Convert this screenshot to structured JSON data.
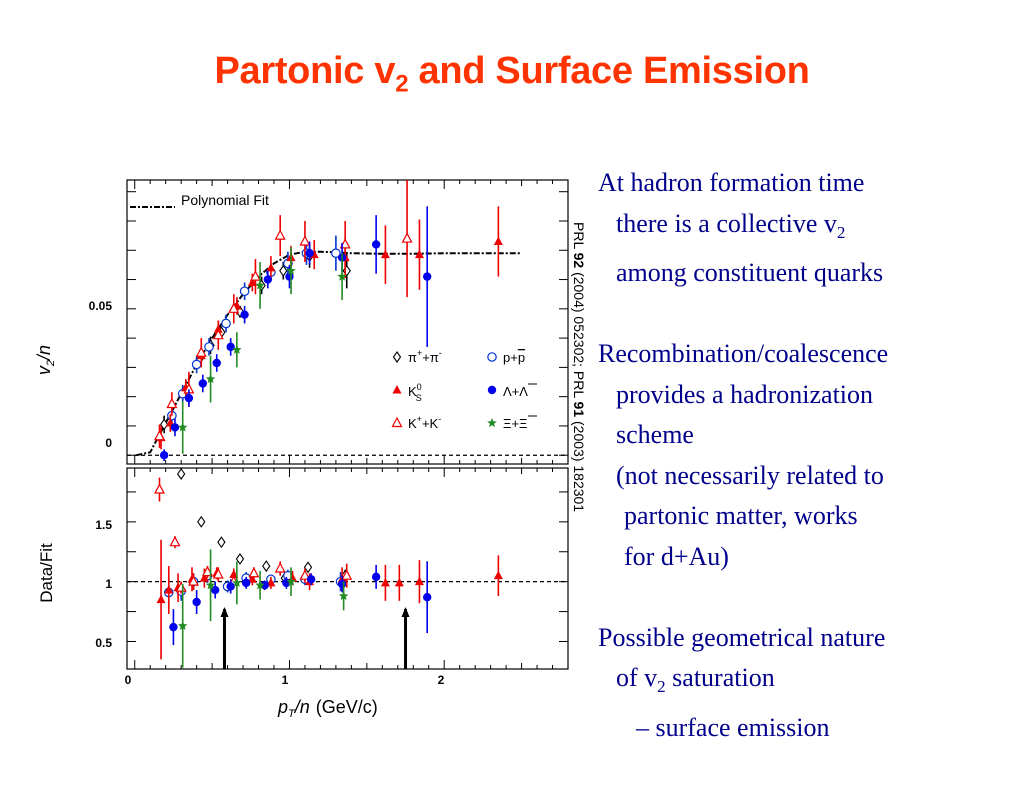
{
  "slide": {
    "title_main": "Partonic v",
    "title_sub": "2",
    "title_rest": " and Surface Emission"
  },
  "citation": {
    "t1": "PRL ",
    "b1": "92",
    "t2": " (2004) 052302; PRL ",
    "b2": "91",
    "t3": " (2003) 182301"
  },
  "bullets": [
    {
      "lines": [
        "At hadron formation time",
        "there is a collective v",
        "among constituent quarks"
      ],
      "sub": "2"
    },
    {
      "lines": [
        "Recombination/coalescence",
        "provides a hadronization",
        "scheme",
        "(not necessarily related to",
        "partonic matter, works",
        "for d+Au)"
      ]
    },
    {
      "lines": [
        "Possible geometrical nature",
        "of v",
        " saturation",
        "– surface emission"
      ],
      "sub": "2"
    }
  ],
  "chart_data": {
    "type": "scatter",
    "panels": [
      {
        "id": "top",
        "ylabel": "v2/n",
        "ylim": [
          -0.003,
          0.094
        ],
        "yticks": [
          0,
          0.05
        ],
        "ytick_labels": [
          "0",
          "0.05"
        ],
        "reference_line": 0,
        "fit_label": "Polynomial Fit",
        "fit_curve": [
          [
            0.01,
            0
          ],
          [
            0.1,
            0.001
          ],
          [
            0.15,
            0.006
          ],
          [
            0.2,
            0.011
          ],
          [
            0.3,
            0.021
          ],
          [
            0.4,
            0.031
          ],
          [
            0.5,
            0.04
          ],
          [
            0.6,
            0.048
          ],
          [
            0.7,
            0.055
          ],
          [
            0.8,
            0.061
          ],
          [
            0.9,
            0.0655
          ],
          [
            1.0,
            0.0685
          ],
          [
            1.1,
            0.0695
          ],
          [
            1.2,
            0.0695
          ],
          [
            1.4,
            0.069
          ],
          [
            1.6,
            0.0688
          ],
          [
            1.8,
            0.0688
          ],
          [
            2.0,
            0.069
          ],
          [
            2.2,
            0.069
          ],
          [
            2.4,
            0.069
          ],
          [
            2.5,
            0.069
          ]
        ],
        "series": [
          {
            "name": "π⁺+π⁻",
            "symbol": "diamond-open",
            "color": "#000000",
            "points": [
              [
                0.19,
                0.0105,
                0.003
              ],
              [
                0.31,
                0.021,
                0.002
              ],
              [
                0.42,
                0.033,
                0.003
              ],
              [
                0.49,
                0.0375,
                0.003
              ],
              [
                0.56,
                0.042,
                0.002
              ],
              [
                0.68,
                0.049,
                0.002
              ],
              [
                0.82,
                0.058,
                0.003
              ],
              [
                0.96,
                0.063,
                0.003
              ],
              [
                1.13,
                0.068,
                0.004
              ],
              [
                1.37,
                0.063,
                0.006
              ]
            ]
          },
          {
            "name": "p+p̄",
            "symbol": "circle-open",
            "color": "#0033cc",
            "points": [
              [
                0.24,
                0.0135,
                0.003
              ],
              [
                0.31,
                0.021,
                0.003
              ],
              [
                0.4,
                0.031,
                0.003
              ],
              [
                0.48,
                0.037,
                0.003
              ],
              [
                0.59,
                0.045,
                0.003
              ],
              [
                0.71,
                0.056,
                0.003
              ],
              [
                0.88,
                0.0625,
                0.003
              ],
              [
                0.99,
                0.0655,
                0.004
              ],
              [
                1.11,
                0.069,
                0.004
              ],
              [
                1.3,
                0.069,
                0.006
              ]
            ]
          },
          {
            "name": "K⁰S",
            "symbol": "triangle-filled",
            "color": "#ee0000",
            "points": [
              [
                0.17,
                0.006,
                0.004
              ],
              [
                0.23,
                0.011,
                0.003
              ],
              [
                0.33,
                0.023,
                0.003
              ],
              [
                0.43,
                0.034,
                0.003
              ],
              [
                0.54,
                0.043,
                0.003
              ],
              [
                0.66,
                0.051,
                0.003
              ],
              [
                0.76,
                0.059,
                0.003
              ],
              [
                0.88,
                0.064,
                0.004
              ],
              [
                1.01,
                0.0675,
                0.004
              ],
              [
                1.16,
                0.0685,
                0.005
              ],
              [
                1.36,
                0.0675,
                0.007
              ],
              [
                1.62,
                0.0685,
                0.01
              ],
              [
                1.84,
                0.0685,
                0.012
              ],
              [
                2.35,
                0.073,
                0.012
              ]
            ]
          },
          {
            "name": "K⁺+K⁻",
            "symbol": "triangle-open",
            "color": "#ee0000",
            "points": [
              [
                0.16,
                0.0065,
                0.004
              ],
              [
                0.24,
                0.0175,
                0.004
              ],
              [
                0.35,
                0.0225,
                0.006
              ],
              [
                0.43,
                0.035,
                0.005
              ],
              [
                0.54,
                0.041,
                0.005
              ],
              [
                0.64,
                0.05,
                0.005
              ],
              [
                0.78,
                0.061,
                0.006
              ],
              [
                0.94,
                0.075,
                0.007
              ],
              [
                1.1,
                0.073,
                0.007
              ],
              [
                1.36,
                0.072,
                0.008
              ],
              [
                1.76,
                0.074,
                0.02
              ]
            ]
          },
          {
            "name": "Λ+Λ̄",
            "symbol": "circle-filled",
            "color": "#0000ee",
            "points": [
              [
                0.19,
                0.0,
                0.002
              ],
              [
                0.26,
                0.0095,
                0.003
              ],
              [
                0.35,
                0.0195,
                0.003
              ],
              [
                0.44,
                0.0245,
                0.003
              ],
              [
                0.53,
                0.0315,
                0.003
              ],
              [
                0.62,
                0.037,
                0.003
              ],
              [
                0.71,
                0.048,
                0.003
              ],
              [
                0.86,
                0.06,
                0.003
              ],
              [
                1.0,
                0.061,
                0.004
              ],
              [
                1.13,
                0.069,
                0.004
              ],
              [
                1.34,
                0.0675,
                0.005
              ],
              [
                1.56,
                0.072,
                0.01
              ],
              [
                1.89,
                0.061,
                0.024
              ]
            ]
          },
          {
            "name": "Ξ+Ξ̄",
            "symbol": "star",
            "color": "#228b22",
            "points": [
              [
                0.31,
                0.0095,
                0.009
              ],
              [
                0.49,
                0.026,
                0.008
              ],
              [
                0.66,
                0.036,
                0.006
              ],
              [
                0.81,
                0.058,
                0.008
              ],
              [
                1.01,
                0.063,
                0.008
              ],
              [
                1.34,
                0.061,
                0.008
              ]
            ]
          }
        ]
      },
      {
        "id": "bottom",
        "ylabel": "Data/Fit",
        "ylim": [
          0.27,
          1.95
        ],
        "yticks": [
          0.5,
          1,
          1.5
        ],
        "ytick_labels": [
          "0.5",
          "1",
          "1.5"
        ],
        "reference_line": 1,
        "arrows_x": [
          0.58,
          1.75
        ],
        "xlim": [
          -0.05,
          2.8
        ],
        "xticks": [
          0,
          1,
          2
        ],
        "xtick_labels": [
          "0",
          "1",
          "2"
        ],
        "xlabel_italic": "pT/n",
        "xlabel_rest": "(GeV/c)",
        "series": [
          {
            "name": "π⁺+π⁻",
            "symbol": "diamond-open",
            "color": "#000000",
            "points": [
              [
                0.3,
                1.9,
                0.02
              ],
              [
                0.43,
                1.5,
                0.02
              ],
              [
                0.56,
                1.33,
                0.02
              ],
              [
                0.68,
                1.19,
                0.02
              ],
              [
                0.85,
                1.13,
                0.02
              ],
              [
                0.97,
                1.03,
                0.02
              ],
              [
                1.12,
                1.12,
                0.03
              ],
              [
                1.36,
                1.05,
                0.05
              ]
            ]
          },
          {
            "name": "p+p̄",
            "symbol": "circle-open",
            "color": "#0033cc",
            "points": [
              [
                0.22,
                0.91,
                0.12
              ],
              [
                0.3,
                0.92,
                0.08
              ],
              [
                0.38,
                1.0,
                0.07
              ],
              [
                0.47,
                1.05,
                0.06
              ],
              [
                0.6,
                0.96,
                0.05
              ],
              [
                0.72,
                1.03,
                0.05
              ],
              [
                0.88,
                1.02,
                0.04
              ],
              [
                0.99,
                1.05,
                0.05
              ],
              [
                1.1,
                1.02,
                0.05
              ],
              [
                1.33,
                1.0,
                0.08
              ]
            ]
          },
          {
            "name": "K⁰S",
            "symbol": "triangle-filled",
            "color": "#ee0000",
            "points": [
              [
                0.17,
                0.85,
                0.5
              ],
              [
                0.22,
                0.93,
                0.2
              ],
              [
                0.28,
                0.95,
                0.12
              ],
              [
                0.37,
                1.02,
                0.1
              ],
              [
                0.45,
                1.03,
                0.08
              ],
              [
                0.53,
                1.07,
                0.05
              ],
              [
                0.64,
                1.06,
                0.05
              ],
              [
                0.76,
                1.02,
                0.05
              ],
              [
                0.88,
                0.99,
                0.05
              ],
              [
                1.02,
                1.03,
                0.06
              ],
              [
                1.13,
                1.0,
                0.07
              ],
              [
                1.34,
                1.02,
                0.1
              ],
              [
                1.62,
                0.99,
                0.15
              ],
              [
                1.71,
                0.99,
                0.15
              ],
              [
                1.84,
                1.0,
                0.18
              ],
              [
                2.35,
                1.05,
                0.17
              ]
            ]
          },
          {
            "name": "K⁺+K⁻",
            "symbol": "triangle-open",
            "color": "#ee0000",
            "points": [
              [
                0.16,
                1.77,
                0.1
              ],
              [
                0.26,
                1.33,
                0.05
              ],
              [
                0.3,
                0.95,
                0.05
              ],
              [
                0.38,
                1.0,
                0.07
              ],
              [
                0.47,
                1.08,
                0.05
              ],
              [
                0.54,
                1.06,
                0.06
              ],
              [
                0.64,
                1.0,
                0.05
              ],
              [
                0.77,
                1.07,
                0.05
              ],
              [
                0.94,
                1.11,
                0.06
              ],
              [
                1.1,
                1.05,
                0.06
              ],
              [
                1.37,
                1.05,
                0.1
              ]
            ]
          },
          {
            "name": "Λ+Λ̄",
            "symbol": "circle-filled",
            "color": "#0000ee",
            "points": [
              [
                0.25,
                0.62,
                0.15
              ],
              [
                0.4,
                0.83,
                0.1
              ],
              [
                0.52,
                0.93,
                0.07
              ],
              [
                0.62,
                0.96,
                0.06
              ],
              [
                0.72,
                0.99,
                0.05
              ],
              [
                0.84,
                0.97,
                0.04
              ],
              [
                0.98,
                0.99,
                0.05
              ],
              [
                1.14,
                1.02,
                0.05
              ],
              [
                1.34,
                0.98,
                0.07
              ],
              [
                1.56,
                1.04,
                0.1
              ],
              [
                1.89,
                0.87,
                0.3
              ]
            ]
          },
          {
            "name": "Ξ+Ξ̄",
            "symbol": "star",
            "color": "#228b22",
            "points": [
              [
                0.31,
                0.63,
                0.35
              ],
              [
                0.49,
                0.97,
                0.3
              ],
              [
                0.66,
                0.99,
                0.18
              ],
              [
                0.81,
                0.97,
                0.12
              ],
              [
                1.01,
                1.0,
                0.12
              ],
              [
                1.35,
                0.88,
                0.12
              ]
            ]
          }
        ]
      }
    ],
    "legend": [
      "π⁺+π⁻",
      "p+p̄",
      "K⁰S",
      "Λ+Λ̄",
      "K⁺+K⁻",
      "Ξ+Ξ̄"
    ]
  }
}
